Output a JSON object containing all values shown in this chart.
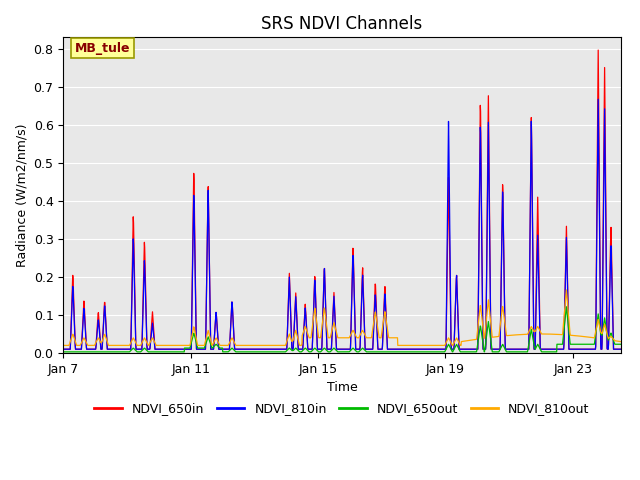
{
  "title": "SRS NDVI Channels",
  "xlabel": "Time",
  "ylabel": "Radiance (W/m2/nm/s)",
  "annotation": "MB_tule",
  "ylim": [
    0,
    0.83
  ],
  "yticks": [
    0.0,
    0.1,
    0.2,
    0.3,
    0.4,
    0.5,
    0.6,
    0.7,
    0.8
  ],
  "xtick_labels": [
    "Jan 7",
    "Jan 11",
    "Jan 15",
    "Jan 19",
    "Jan 23"
  ],
  "xtick_positions": [
    0,
    4,
    8,
    12,
    16
  ],
  "xlim": [
    0,
    17.5
  ],
  "line_colors": {
    "NDVI_650in": "#ff0000",
    "NDVI_810in": "#0000ff",
    "NDVI_650out": "#00bb00",
    "NDVI_810out": "#ffaa00"
  },
  "background_color": "#e8e8e8",
  "title_fontsize": 12,
  "label_fontsize": 9,
  "tick_fontsize": 9,
  "annotation_facecolor": "#ffff99",
  "annotation_edgecolor": "#999900",
  "annotation_textcolor": "#880000",
  "grid_color": "#ffffff",
  "linewidth": 0.9
}
